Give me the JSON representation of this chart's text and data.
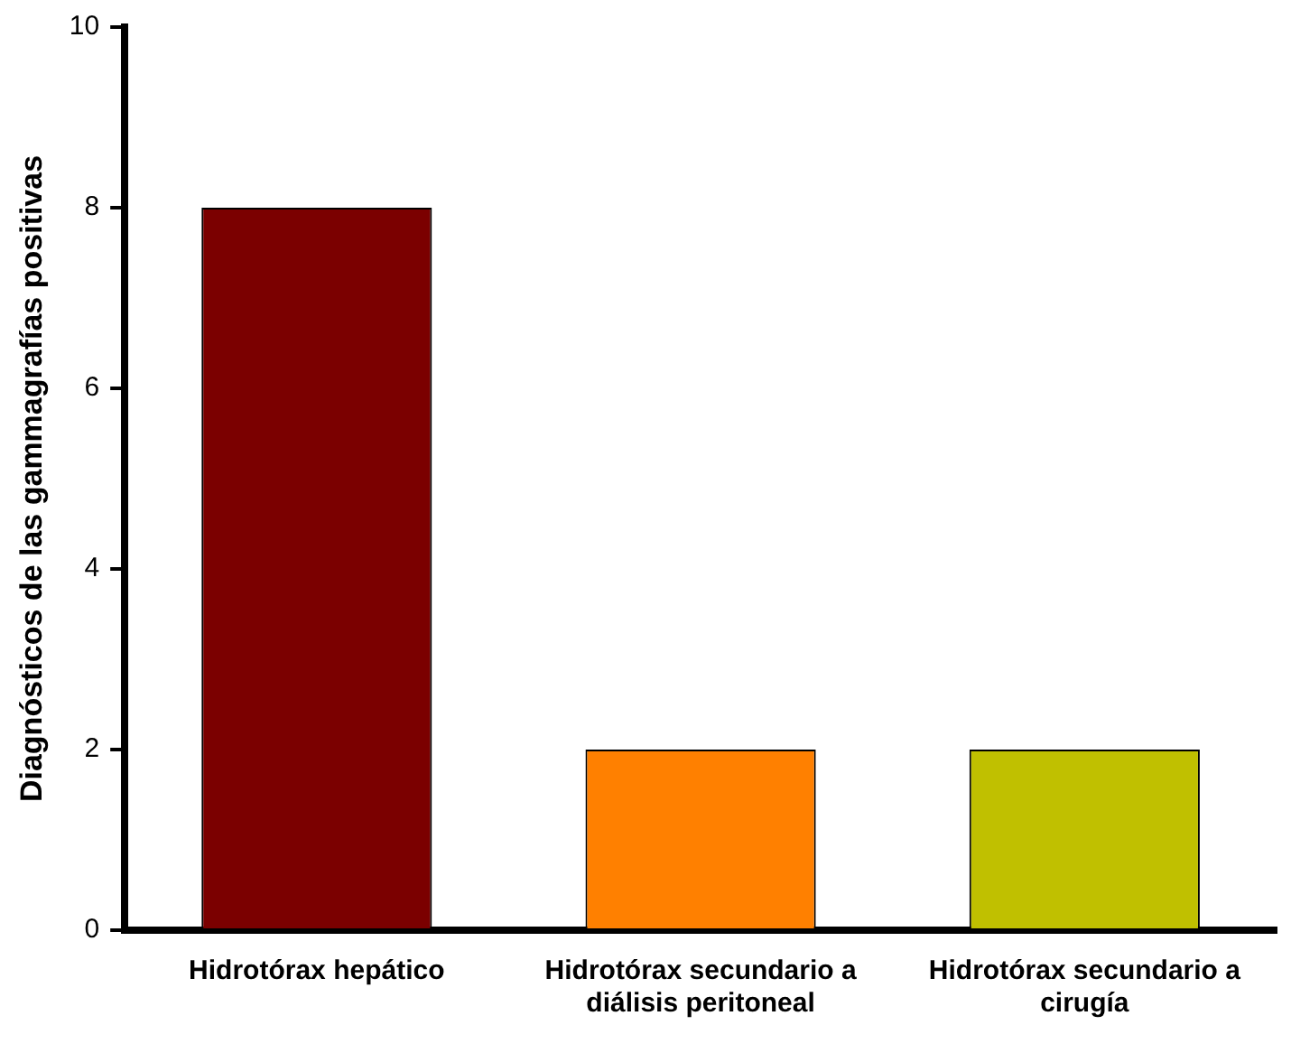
{
  "chart_data": {
    "type": "bar",
    "ylabel": "Diagnósticos de las gammagrafías positivas",
    "categories": [
      "Hidrotórax hepático",
      "Hidrotórax secundario a diálisis peritoneal",
      "Hidrotórax secundario a cirugía"
    ],
    "values": [
      8,
      2,
      2
    ],
    "colors": [
      "#7b0000",
      "#ff8000",
      "#c0c000"
    ],
    "ylim": [
      0,
      10
    ],
    "yticks": [
      0,
      2,
      4,
      6,
      8,
      10
    ],
    "grid": false,
    "legend": false
  }
}
